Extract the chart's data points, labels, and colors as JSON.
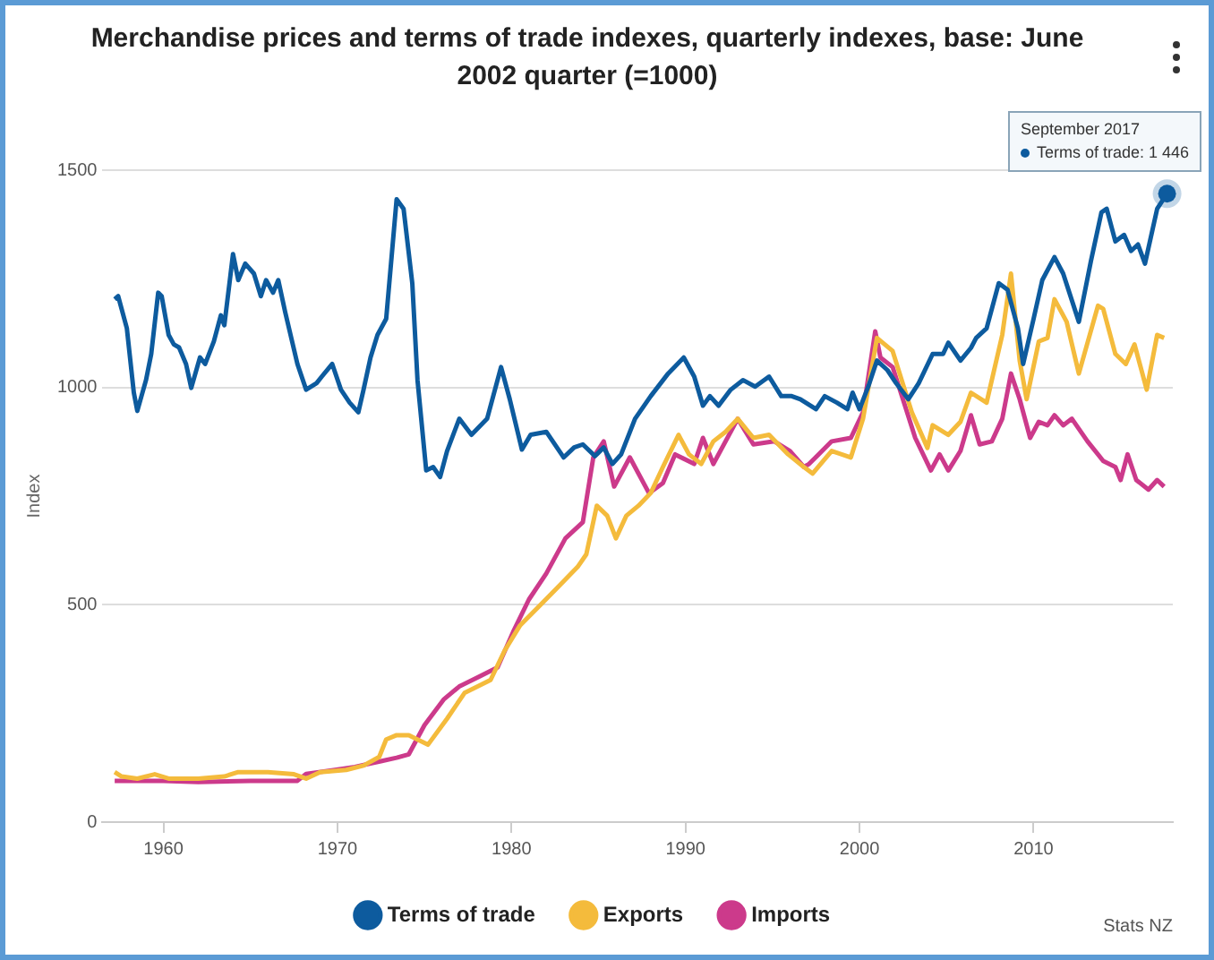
{
  "chart_data": {
    "type": "line",
    "title": "Merchandise prices and terms of trade indexes, quarterly indexes, base: June 2002 quarter (=1000)",
    "ylabel": "Index",
    "xlim": [
      1956.5,
      2018
    ],
    "xticks": [
      1960,
      1970,
      1980,
      1990,
      2000,
      2010
    ],
    "ylim": [
      0,
      1500
    ],
    "yticks": [
      0,
      500,
      1000,
      1500
    ],
    "grid": "y",
    "legend": "bottom",
    "marker": "none",
    "line_style": "solid",
    "annotations": [
      "September 2017",
      "Terms of trade: 1 446",
      "Stats NZ"
    ],
    "series": [
      {
        "name": "Terms of trade",
        "color": "#0d5b9e",
        "x": [
          1957.2,
          1957.4,
          1957.9,
          1958.3,
          1958.5,
          1959,
          1959.3,
          1959.7,
          1959.9,
          1960.3,
          1960.6,
          1960.9,
          1961.3,
          1961.6,
          1962.1,
          1962.4,
          1962.9,
          1963.3,
          1963.5,
          1964,
          1964.3,
          1964.7,
          1965.2,
          1965.6,
          1965.9,
          1966.3,
          1966.6,
          1967,
          1967.7,
          1968.2,
          1968.8,
          1969.1,
          1969.7,
          1970.2,
          1970.7,
          1971.2,
          1971.5,
          1971.9,
          1972.3,
          1972.8,
          1973.4,
          1973.8,
          1974.3,
          1974.6,
          1975.1,
          1975.5,
          1975.9,
          1976.3,
          1977,
          1977.7,
          1978.6,
          1979.4,
          1979.9,
          1980.6,
          1981.1,
          1982,
          1983,
          1983.6,
          1984.1,
          1984.8,
          1985.3,
          1985.8,
          1986.3,
          1987.1,
          1988,
          1989,
          1989.9,
          1990.5,
          1991,
          1991.4,
          1991.9,
          1992.6,
          1993.3,
          1994,
          1994.8,
          1995.5,
          1996.1,
          1996.6,
          1997.5,
          1998,
          1998.7,
          1999.3,
          1999.6,
          2000,
          2000.5,
          2001,
          2001.6,
          2002.1,
          2002.8,
          2003.4,
          2004.2,
          2004.8,
          2005.1,
          2005.8,
          2006.4,
          2006.7,
          2007.3,
          2008,
          2008.5,
          2009.1,
          2009.4,
          2010,
          2010.5,
          2011.2,
          2011.7,
          2012.6,
          2013.3,
          2013.9,
          2014.2,
          2014.7,
          2015.2,
          2015.6,
          2016,
          2016.4,
          2017.1,
          2017.67
        ],
        "values": [
          1203,
          1210,
          1136,
          988,
          946,
          1017,
          1077,
          1218,
          1210,
          1121,
          1099,
          1092,
          1054,
          999,
          1069,
          1054,
          1106,
          1166,
          1143,
          1307,
          1247,
          1285,
          1262,
          1210,
          1247,
          1218,
          1247,
          1173,
          1054,
          995,
          1010,
          1025,
          1054,
          995,
          965,
          943,
          995,
          1069,
          1121,
          1158,
          1433,
          1411,
          1240,
          1017,
          809,
          817,
          794,
          854,
          928,
          891,
          928,
          1047,
          973,
          857,
          891,
          898,
          839,
          862,
          869,
          842,
          862,
          824,
          846,
          928,
          980,
          1032,
          1069,
          1025,
          958,
          980,
          958,
          995,
          1017,
          1002,
          1025,
          980,
          980,
          973,
          950,
          980,
          965,
          950,
          988,
          950,
          1002,
          1062,
          1040,
          1010,
          973,
          1010,
          1077,
          1077,
          1103,
          1062,
          1091,
          1114,
          1136,
          1240,
          1225,
          1136,
          1054,
          1158,
          1247,
          1300,
          1262,
          1151,
          1292,
          1403,
          1411,
          1336,
          1351,
          1314,
          1329,
          1285,
          1411,
          1446
        ]
      },
      {
        "name": "Exports",
        "color": "#f4bb3c",
        "x": [
          1957.2,
          1957.6,
          1958.5,
          1959.5,
          1960.3,
          1962,
          1963.5,
          1964.3,
          1966,
          1967.5,
          1968.2,
          1969,
          1970.5,
          1971.5,
          1972.4,
          1972.8,
          1973.4,
          1974.1,
          1975.2,
          1976.3,
          1977.3,
          1978.8,
          1979.6,
          1980.5,
          1981.6,
          1982.7,
          1983.8,
          1984.3,
          1984.9,
          1985.5,
          1986,
          1986.6,
          1987.3,
          1988,
          1988.7,
          1989.6,
          1990.2,
          1990.9,
          1991.6,
          1992.3,
          1993,
          1993.9,
          1994.8,
          1995.9,
          1996.8,
          1997.3,
          1998.4,
          1999.5,
          2000.2,
          2001,
          2001.9,
          2003,
          2003.9,
          2004.2,
          2005.1,
          2005.8,
          2006.4,
          2007.3,
          2008.2,
          2008.7,
          2009.2,
          2009.6,
          2010.3,
          2010.8,
          2011.2,
          2011.9,
          2012.6,
          2013.7,
          2014,
          2014.7,
          2015.3,
          2015.8,
          2016.5,
          2017.1,
          2017.5
        ],
        "values": [
          115,
          105,
          100,
          110,
          100,
          100,
          105,
          115,
          115,
          110,
          100,
          115,
          120,
          130,
          150,
          190,
          200,
          200,
          178,
          238,
          297,
          327,
          394,
          453,
          497,
          542,
          587,
          616,
          728,
          705,
          653,
          705,
          728,
          757,
          817,
          891,
          846,
          824,
          876,
          898,
          928,
          884,
          891,
          846,
          817,
          802,
          854,
          839,
          928,
          1114,
          1084,
          943,
          861,
          913,
          891,
          921,
          988,
          965,
          1121,
          1262,
          1062,
          973,
          1106,
          1114,
          1203,
          1151,
          1032,
          1188,
          1181,
          1077,
          1054,
          1099,
          995,
          1121,
          1114
        ]
      },
      {
        "name": "Imports",
        "color": "#cc3a8b",
        "x": [
          1957.2,
          1960,
          1962,
          1965,
          1967.7,
          1968.2,
          1969.5,
          1971,
          1972.5,
          1973.4,
          1974.1,
          1975,
          1976.1,
          1977,
          1978.1,
          1979.2,
          1980.1,
          1981,
          1982,
          1983.1,
          1984.1,
          1984.7,
          1985.3,
          1985.9,
          1986.8,
          1987.9,
          1988.7,
          1989.4,
          1990.5,
          1991,
          1991.6,
          1993,
          1993.9,
          1995.1,
          1996,
          1996.8,
          1997.1,
          1998.4,
          1999.5,
          2000.2,
          2000.9,
          2001.2,
          2001.9,
          2003.2,
          2004.1,
          2004.6,
          2005.1,
          2005.8,
          2006.4,
          2006.9,
          2007.6,
          2008.2,
          2008.7,
          2009.2,
          2009.8,
          2010.3,
          2010.8,
          2011.2,
          2011.7,
          2012.2,
          2013.1,
          2014,
          2014.7,
          2015,
          2015.4,
          2015.9,
          2016.6,
          2017.1,
          2017.5
        ],
        "values": [
          95,
          95,
          92,
          95,
          95,
          111,
          118,
          127,
          140,
          148,
          156,
          223,
          282,
          312,
          334,
          356,
          438,
          512,
          572,
          653,
          690,
          839,
          876,
          772,
          839,
          757,
          780,
          846,
          824,
          884,
          824,
          928,
          869,
          876,
          854,
          817,
          824,
          876,
          884,
          943,
          1129,
          1069,
          1047,
          884,
          809,
          846,
          809,
          854,
          936,
          869,
          876,
          928,
          1032,
          973,
          884,
          921,
          913,
          936,
          913,
          928,
          876,
          831,
          817,
          787,
          846,
          787,
          765,
          787,
          772
        ]
      }
    ]
  }
}
